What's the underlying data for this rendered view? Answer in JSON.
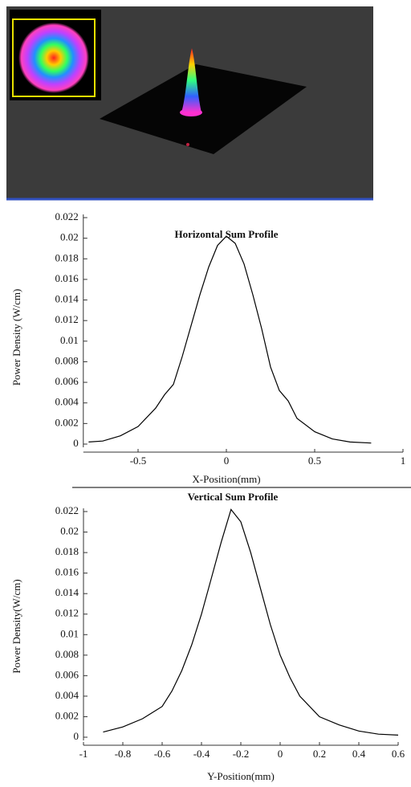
{
  "chart_data": [
    {
      "type": "line",
      "title": "Horizontal Sum Profile",
      "x_label": "X-Position(mm)",
      "y_label": "Power Density (W/cm)",
      "color": "#000000",
      "x": [
        -0.78,
        -0.7,
        -0.6,
        -0.5,
        -0.4,
        -0.35,
        -0.3,
        -0.25,
        -0.2,
        -0.15,
        -0.1,
        -0.05,
        0,
        0.05,
        0.1,
        0.15,
        0.2,
        0.25,
        0.3,
        0.35,
        0.4,
        0.5,
        0.6,
        0.7,
        0.82
      ],
      "values": [
        0.0002,
        0.0003,
        0.0008,
        0.0017,
        0.0035,
        0.0048,
        0.0058,
        0.0085,
        0.0115,
        0.0145,
        0.0172,
        0.0193,
        0.0202,
        0.0195,
        0.0175,
        0.0145,
        0.0112,
        0.0075,
        0.0052,
        0.0042,
        0.0025,
        0.0012,
        0.0005,
        0.0002,
        0.0001
      ],
      "xlim": [
        -0.81,
        1
      ],
      "xticks": [
        -0.5,
        0,
        0.5,
        1
      ],
      "ylim": [
        0,
        0.022
      ],
      "yticks": [
        0,
        0.002,
        0.004,
        0.006,
        0.008,
        0.01,
        0.012,
        0.014,
        0.016,
        0.018,
        0.02,
        0.022
      ]
    },
    {
      "type": "line",
      "title": "Vertical Sum Profile",
      "x_label": "Y-Position(mm)",
      "y_label": "Power Density(W/cm)",
      "color": "#000000",
      "x": [
        -0.9,
        -0.8,
        -0.7,
        -0.6,
        -0.55,
        -0.5,
        -0.45,
        -0.4,
        -0.35,
        -0.3,
        -0.25,
        -0.2,
        -0.15,
        -0.1,
        -0.05,
        0,
        0.05,
        0.1,
        0.2,
        0.3,
        0.4,
        0.5,
        0.6
      ],
      "values": [
        0.0005,
        0.001,
        0.0018,
        0.003,
        0.0045,
        0.0065,
        0.009,
        0.012,
        0.0155,
        0.019,
        0.0222,
        0.021,
        0.018,
        0.0145,
        0.011,
        0.008,
        0.0058,
        0.004,
        0.002,
        0.0012,
        0.0006,
        0.0003,
        0.0002
      ],
      "xlim": [
        -1,
        0.6
      ],
      "xticks": [
        -1,
        -0.8,
        -0.6,
        -0.4,
        -0.2,
        0,
        0.2,
        0.4,
        0.6
      ],
      "ylim": [
        0,
        0.022
      ],
      "yticks": [
        0,
        0.002,
        0.004,
        0.006,
        0.008,
        0.01,
        0.012,
        0.014,
        0.016,
        0.018,
        0.02,
        0.022
      ]
    }
  ]
}
